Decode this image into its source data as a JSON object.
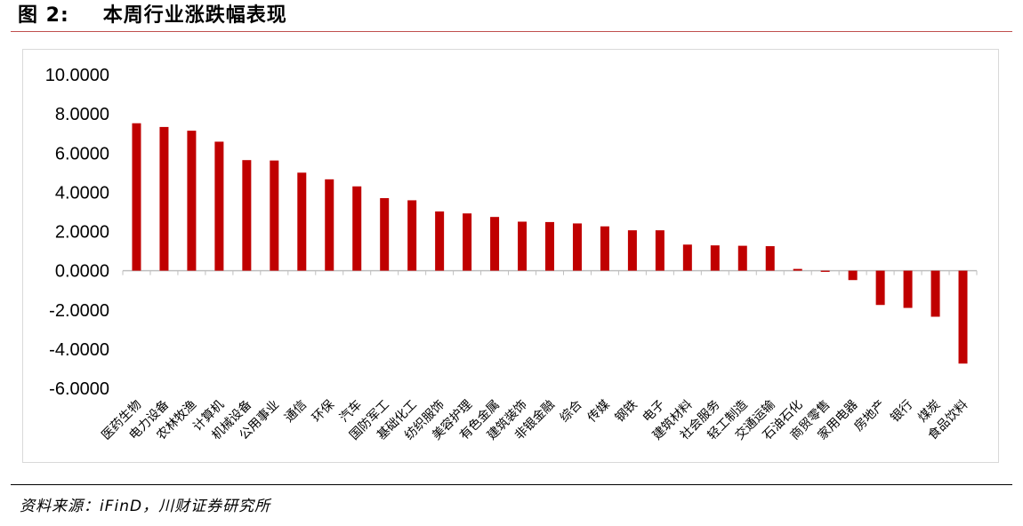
{
  "figure": {
    "label": "图 2:",
    "title": "本周行业涨跌幅表现"
  },
  "source": "资料来源：iFinD，川财证券研究所",
  "colors": {
    "bar": "#c00000",
    "axis": "#bfbfbf",
    "title_rule": "#c0504d"
  },
  "chart_data": {
    "type": "bar",
    "title": "",
    "xlabel": "",
    "ylabel": "",
    "ylim": [
      -6,
      10
    ],
    "yticks": [
      "10.0000",
      "8.0000",
      "6.0000",
      "4.0000",
      "2.0000",
      "0.0000",
      "-2.0000",
      "-4.0000",
      "-6.0000"
    ],
    "ytick_values": [
      10,
      8,
      6,
      4,
      2,
      0,
      -2,
      -4,
      -6
    ],
    "grid": false,
    "legend": "none",
    "categories": [
      "医药生物",
      "电力设备",
      "农林牧渔",
      "计算机",
      "机械设备",
      "公用事业",
      "通信",
      "环保",
      "汽车",
      "国防军工",
      "基础化工",
      "纺织服饰",
      "美容护理",
      "有色金属",
      "建筑装饰",
      "非银金融",
      "综合",
      "传媒",
      "钢铁",
      "电子",
      "建筑材料",
      "社会服务",
      "轻工制造",
      "交通运输",
      "石油石化",
      "商贸零售",
      "家用电器",
      "房地产",
      "银行",
      "煤炭",
      "食品饮料"
    ],
    "values": [
      7.52,
      7.33,
      7.14,
      6.58,
      5.64,
      5.62,
      5.0,
      4.66,
      4.3,
      3.7,
      3.59,
      3.02,
      2.92,
      2.74,
      2.5,
      2.48,
      2.41,
      2.26,
      2.06,
      2.06,
      1.33,
      1.29,
      1.27,
      1.25,
      0.09,
      -0.06,
      -0.48,
      -1.75,
      -1.9,
      -2.35,
      -4.74
    ]
  }
}
